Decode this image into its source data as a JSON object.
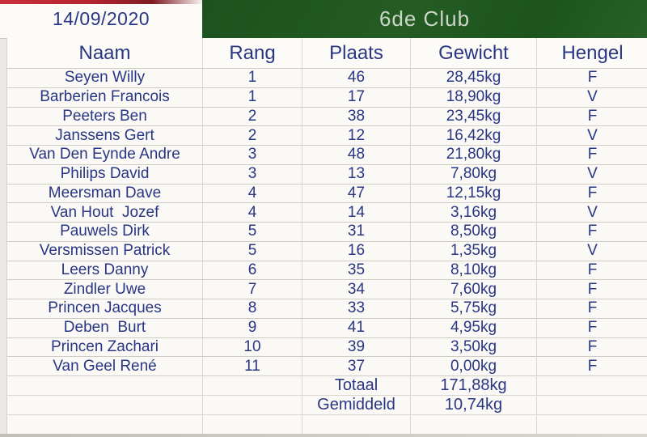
{
  "header": {
    "date": "14/09/2020",
    "title": "6de Club"
  },
  "table": {
    "columns": {
      "naam": "Naam",
      "rang": "Rang",
      "plaats": "Plaats",
      "gewicht": "Gewicht",
      "hengel": "Hengel"
    },
    "rows": [
      {
        "naam": "Seyen Willy",
        "rang": "1",
        "plaats": "46",
        "gewicht": "28,45kg",
        "hengel": "F"
      },
      {
        "naam": "Barberien Francois",
        "rang": "1",
        "plaats": "17",
        "gewicht": "18,90kg",
        "hengel": "V"
      },
      {
        "naam": "Peeters Ben",
        "rang": "2",
        "plaats": "38",
        "gewicht": "23,45kg",
        "hengel": "F"
      },
      {
        "naam": "Janssens Gert",
        "rang": "2",
        "plaats": "12",
        "gewicht": "16,42kg",
        "hengel": "V"
      },
      {
        "naam": "Van Den Eynde Andre",
        "rang": "3",
        "plaats": "48",
        "gewicht": "21,80kg",
        "hengel": "F"
      },
      {
        "naam": "Philips David",
        "rang": "3",
        "plaats": "13",
        "gewicht": "7,80kg",
        "hengel": "V"
      },
      {
        "naam": "Meersman Dave",
        "rang": "4",
        "plaats": "47",
        "gewicht": "12,15kg",
        "hengel": "F"
      },
      {
        "naam": "Van Hout  Jozef",
        "rang": "4",
        "plaats": "14",
        "gewicht": "3,16kg",
        "hengel": "V"
      },
      {
        "naam": "Pauwels Dirk",
        "rang": "5",
        "plaats": "31",
        "gewicht": "8,50kg",
        "hengel": "F"
      },
      {
        "naam": "Versmissen Patrick",
        "rang": "5",
        "plaats": "16",
        "gewicht": "1,35kg",
        "hengel": "V"
      },
      {
        "naam": "Leers Danny",
        "rang": "6",
        "plaats": "35",
        "gewicht": "8,10kg",
        "hengel": "F"
      },
      {
        "naam": "Zindler Uwe",
        "rang": "7",
        "plaats": "34",
        "gewicht": "7,60kg",
        "hengel": "F"
      },
      {
        "naam": "Princen Jacques",
        "rang": "8",
        "plaats": "33",
        "gewicht": "5,75kg",
        "hengel": "F"
      },
      {
        "naam": "Deben  Burt",
        "rang": "9",
        "plaats": "41",
        "gewicht": "4,95kg",
        "hengel": "F"
      },
      {
        "naam": "Princen Zachari",
        "rang": "10",
        "plaats": "39",
        "gewicht": "3,50kg",
        "hengel": "F"
      },
      {
        "naam": "Van Geel René",
        "rang": "11",
        "plaats": "37",
        "gewicht": "0,00kg",
        "hengel": "F"
      }
    ],
    "summary": {
      "totaal_label": "Totaal",
      "totaal_value": "171,88kg",
      "gemiddeld_label": "Gemiddeld",
      "gemiddeld_value": "10,74kg"
    }
  },
  "colors": {
    "banner_green": "#1e5a20",
    "accent_red": "#b52430",
    "text_navy": "#293683",
    "paper_white": "#faf9f5",
    "gridline_grey": "#d0ccc5"
  }
}
